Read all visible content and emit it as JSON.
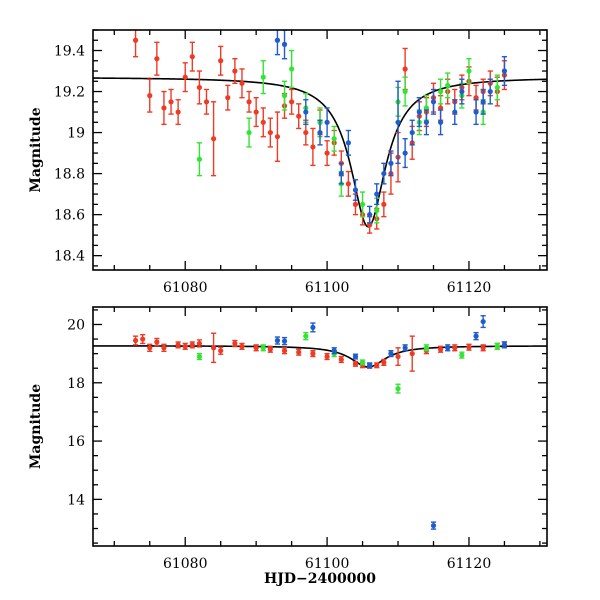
{
  "chart_data": [
    {
      "type": "scatter",
      "panel": "top",
      "title": "",
      "xlabel": "",
      "ylabel": "Magnitude",
      "xlim": [
        61067,
        61131
      ],
      "ylim": [
        19.5,
        18.33
      ],
      "y_inverted": true,
      "x_ticks": [
        61080,
        61100,
        61120
      ],
      "x_tick_labels": [
        "61080",
        "61100",
        "61120"
      ],
      "y_ticks": [
        18.4,
        18.6,
        18.8,
        19.0,
        19.2,
        19.4
      ],
      "y_tick_labels": [
        "18.4",
        "18.6",
        "18.8",
        "19",
        "19.2",
        "19.4"
      ],
      "model": {
        "name": "Model fit",
        "color": "#000000",
        "baseline": 19.27,
        "amplitude": 0.73,
        "t0": 61105.8,
        "tE": 3.0
      },
      "series": [
        {
          "name": "Red",
          "color": "#ee3b25",
          "x": [
            61073,
            61075,
            61076,
            61077,
            61078,
            61079,
            61080,
            61081,
            61082,
            61083,
            61084,
            61085,
            61086,
            61087,
            61088,
            61089,
            61090,
            61091,
            61092,
            61093,
            61094,
            61095,
            61096,
            61097,
            61098,
            61099,
            61100,
            61101,
            61102,
            61103,
            61104,
            61105,
            61106,
            61107,
            61108,
            61109,
            61110,
            61111,
            61112,
            61113,
            61114,
            61115,
            61116,
            61117,
            61118,
            61119,
            61120,
            61121,
            61122,
            61123,
            61124,
            61125
          ],
          "y": [
            19.45,
            19.18,
            19.36,
            19.12,
            19.15,
            19.1,
            19.27,
            19.37,
            19.22,
            19.15,
            18.97,
            19.35,
            19.17,
            19.3,
            19.24,
            19.15,
            19.1,
            19.05,
            19.0,
            18.98,
            19.13,
            19.15,
            19.08,
            19.0,
            18.93,
            19.05,
            18.9,
            18.95,
            18.85,
            18.75,
            18.65,
            18.6,
            18.55,
            18.58,
            18.65,
            18.8,
            18.88,
            19.31,
            18.95,
            19.08,
            19.1,
            19.17,
            19.12,
            19.2,
            19.15,
            19.22,
            19.25,
            19.17,
            19.2,
            19.24,
            19.2,
            19.28
          ],
          "err": [
            0.08,
            0.08,
            0.08,
            0.08,
            0.06,
            0.06,
            0.07,
            0.07,
            0.08,
            0.06,
            0.18,
            0.07,
            0.06,
            0.06,
            0.07,
            0.05,
            0.07,
            0.07,
            0.07,
            0.12,
            0.06,
            0.06,
            0.06,
            0.06,
            0.09,
            0.06,
            0.06,
            0.06,
            0.06,
            0.06,
            0.05,
            0.05,
            0.04,
            0.05,
            0.06,
            0.1,
            0.12,
            0.1,
            0.08,
            0.07,
            0.07,
            0.07,
            0.06,
            0.06,
            0.06,
            0.06,
            0.07,
            0.06,
            0.06,
            0.06,
            0.07,
            0.07
          ]
        },
        {
          "name": "Green",
          "color": "#33e533",
          "x": [
            61082,
            61089,
            61091,
            61094,
            61095,
            61097,
            61099,
            61101,
            61102,
            61105,
            61107,
            61110,
            61111,
            61113,
            61114,
            61116,
            61117,
            61119,
            61120,
            61122,
            61124
          ],
          "y": [
            18.87,
            19.0,
            19.27,
            19.18,
            19.31,
            19.12,
            19.05,
            18.97,
            18.75,
            18.65,
            18.62,
            19.15,
            19.2,
            19.05,
            19.12,
            19.2,
            19.23,
            19.18,
            19.3,
            19.1,
            19.22
          ],
          "err": [
            0.08,
            0.07,
            0.08,
            0.07,
            0.09,
            0.07,
            0.07,
            0.06,
            0.06,
            0.06,
            0.06,
            0.07,
            0.07,
            0.06,
            0.06,
            0.06,
            0.06,
            0.06,
            0.06,
            0.06,
            0.06
          ]
        },
        {
          "name": "Blue",
          "color": "#1f5ccc",
          "x": [
            61093,
            61094,
            61097,
            61099,
            61100,
            61102,
            61103,
            61104,
            61106,
            61107,
            61108,
            61109,
            61110,
            61111,
            61112,
            61113,
            61114,
            61115,
            61116,
            61118,
            61119,
            61121,
            61122,
            61123,
            61125
          ],
          "y": [
            19.45,
            19.43,
            19.1,
            19.0,
            19.05,
            18.8,
            18.95,
            18.72,
            18.6,
            18.7,
            18.8,
            18.85,
            19.05,
            18.9,
            19.0,
            19.1,
            19.05,
            19.15,
            19.05,
            19.1,
            19.2,
            19.1,
            19.15,
            19.2,
            19.3
          ],
          "err": [
            0.07,
            0.07,
            0.06,
            0.06,
            0.07,
            0.05,
            0.06,
            0.05,
            0.04,
            0.05,
            0.05,
            0.06,
            0.2,
            0.07,
            0.06,
            0.07,
            0.06,
            0.06,
            0.06,
            0.06,
            0.06,
            0.06,
            0.06,
            0.06,
            0.07
          ]
        }
      ]
    },
    {
      "type": "scatter",
      "panel": "bottom",
      "title": "",
      "xlabel": "HJD−2400000",
      "ylabel": "Magnitude",
      "xlim": [
        61067,
        61131
      ],
      "ylim": [
        20.6,
        12.4
      ],
      "y_inverted": true,
      "x_ticks": [
        61080,
        61100,
        61120
      ],
      "x_tick_labels": [
        "61080",
        "61100",
        "61120"
      ],
      "y_ticks": [
        14,
        16,
        18,
        20
      ],
      "y_tick_labels": [
        "14",
        "16",
        "18",
        "20"
      ],
      "model": {
        "name": "Model fit",
        "color": "#000000",
        "baseline": 19.27,
        "amplitude": 0.73,
        "t0": 61105.8,
        "tE": 3.0
      },
      "series": [
        {
          "name": "Red",
          "color": "#ee3b25",
          "x": [
            61073,
            61074,
            61075,
            61076,
            61077,
            61079,
            61080,
            61081,
            61082,
            61084,
            61085,
            61087,
            61088,
            61090,
            61092,
            61094,
            61096,
            61098,
            61100,
            61102,
            61104,
            61105,
            61106,
            61107,
            61108,
            61110,
            61112,
            61114,
            61116,
            61118,
            61120,
            61122,
            61124,
            61125
          ],
          "y": [
            19.45,
            19.5,
            19.2,
            19.4,
            19.2,
            19.3,
            19.25,
            19.3,
            19.35,
            19.2,
            19.1,
            19.35,
            19.25,
            19.2,
            19.15,
            19.1,
            19.05,
            19.0,
            18.9,
            18.8,
            18.65,
            18.6,
            18.58,
            18.6,
            18.7,
            18.9,
            19.0,
            19.1,
            19.15,
            19.2,
            19.22,
            19.2,
            19.25,
            19.3
          ],
          "err": [
            0.15,
            0.15,
            0.12,
            0.12,
            0.12,
            0.1,
            0.1,
            0.1,
            0.12,
            0.5,
            0.12,
            0.1,
            0.1,
            0.1,
            0.1,
            0.1,
            0.1,
            0.1,
            0.1,
            0.1,
            0.08,
            0.08,
            0.08,
            0.08,
            0.1,
            0.3,
            0.6,
            0.1,
            0.1,
            0.1,
            0.1,
            0.1,
            0.1,
            0.1
          ]
        },
        {
          "name": "Green",
          "color": "#33e533",
          "x": [
            61082,
            61091,
            61097,
            61101,
            61105,
            61110,
            61114,
            61119,
            61124
          ],
          "y": [
            18.9,
            19.2,
            19.6,
            19.0,
            18.7,
            17.8,
            19.2,
            18.95,
            19.25
          ],
          "err": [
            0.1,
            0.1,
            0.12,
            0.1,
            0.08,
            0.15,
            0.1,
            0.1,
            0.1
          ]
        },
        {
          "name": "Blue",
          "color": "#1f5ccc",
          "x": [
            61093,
            61094,
            61098,
            61101,
            61104,
            61106,
            61109,
            61111,
            61115,
            61117,
            61121,
            61122,
            61125
          ],
          "y": [
            19.45,
            19.43,
            19.9,
            19.1,
            18.9,
            18.6,
            19.0,
            19.2,
            13.1,
            19.2,
            19.6,
            20.1,
            19.3
          ],
          "err": [
            0.12,
            0.12,
            0.15,
            0.1,
            0.08,
            0.08,
            0.1,
            0.1,
            0.12,
            0.1,
            0.12,
            0.2,
            0.1
          ]
        }
      ]
    }
  ]
}
